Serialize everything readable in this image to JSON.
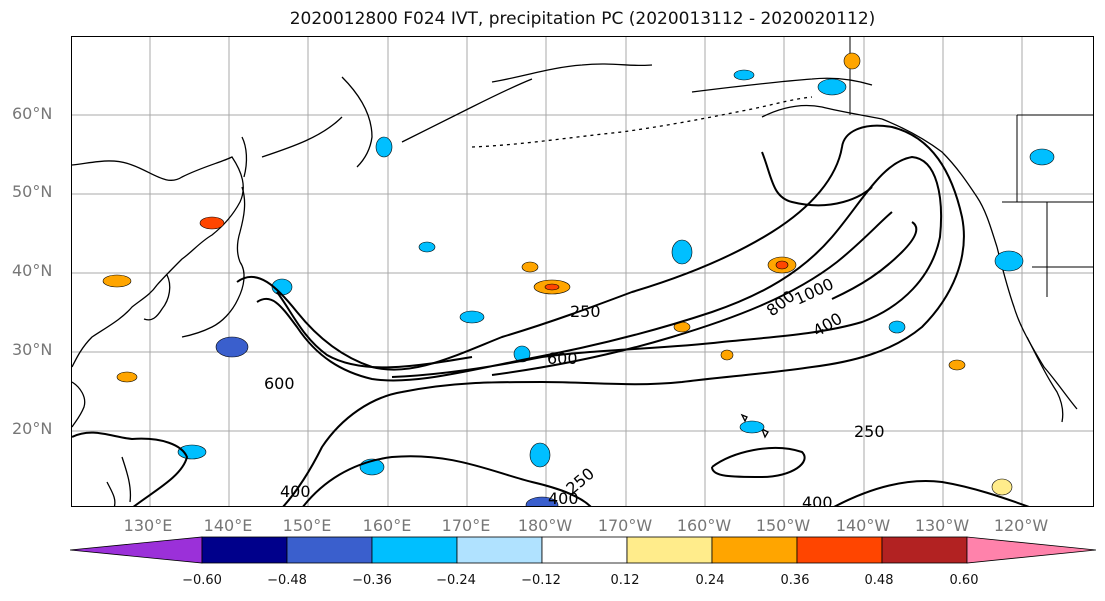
{
  "title": "2020012800 F024 IVT, precipitation PC (2020013112 - 2020020112)",
  "lat_labels": [
    "60°N",
    "50°N",
    "40°N",
    "30°N",
    "20°N"
  ],
  "lon_labels": [
    "130°E",
    "140°E",
    "150°E",
    "160°E",
    "170°E",
    "180°W",
    "170°W",
    "160°W",
    "150°W",
    "140°W",
    "130°W",
    "120°W"
  ],
  "contour_labels": [
    "250",
    "600",
    "600",
    "800",
    "1000",
    "400",
    "250",
    "400",
    "400",
    "400",
    "250"
  ],
  "colorbar": {
    "ticks": [
      "−0.60",
      "−0.48",
      "−0.36",
      "−0.24",
      "−0.12",
      "0.12",
      "0.24",
      "0.36",
      "0.48",
      "0.60"
    ],
    "colors": [
      "#9b30d9",
      "#00008b",
      "#3a5fcd",
      "#00bfff",
      "#b0e2ff",
      "#ffffff",
      "#ffec8b",
      "#ffa500",
      "#ff4500",
      "#b22222",
      "#ff82ab"
    ]
  }
}
